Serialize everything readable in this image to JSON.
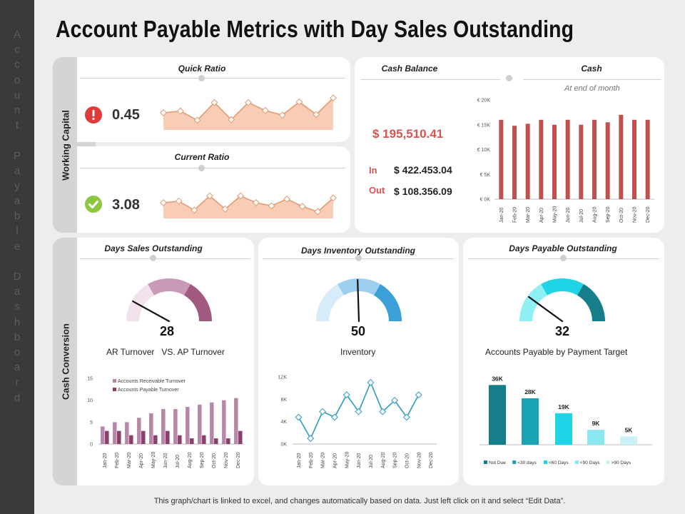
{
  "title": "Account Payable Metrics with Day Sales Outstanding",
  "sidebar_text": "Account Payable Dashboard",
  "sections": {
    "working_capital": "Working Capital",
    "cash_conversion": "Cash Conversion"
  },
  "quick_ratio": {
    "title": "Quick Ratio",
    "value": "0.45",
    "status": "alert",
    "status_color": "#e03b3b",
    "series": [
      3,
      3.3,
      1.7,
      4.8,
      1.8,
      4.8,
      3.4,
      2.6,
      4.9,
      2.7,
      5.6
    ]
  },
  "current_ratio": {
    "title": "Current Ratio",
    "value": "3.08",
    "status": "ok",
    "status_color": "#8dc63f",
    "series": [
      3,
      3.3,
      1.6,
      4.3,
      1.8,
      4.3,
      3.0,
      2.4,
      3.7,
      2.3,
      1.3,
      3.9
    ]
  },
  "cash_balance": {
    "title": "Cash Balance",
    "amount": "$ 195,510.41",
    "in_label": "In",
    "in_value": "$ 422.453.04",
    "out_label": "Out",
    "out_value": "$ 108.356.09"
  },
  "cash_chart": {
    "title": "Cash",
    "subtitle": "At end of month",
    "chart_data": {
      "type": "bar",
      "categories": [
        "Jan-20",
        "Feb-20",
        "Mar-20",
        "Apr-20",
        "May-20",
        "Jun-20",
        "Jul-20",
        "Aug-20",
        "Sep-20",
        "Oct-20",
        "Nov-20",
        "Dec-20"
      ],
      "values": [
        16000,
        14800,
        15200,
        16000,
        15000,
        16000,
        15000,
        16000,
        15500,
        17000,
        16000,
        16000
      ],
      "ylim": [
        0,
        20000
      ],
      "yticks": [
        "€ 0K",
        "€ 5K",
        "€ 10K",
        "€ 15K",
        "€ 20K"
      ],
      "color": "#c0504d"
    }
  },
  "dso": {
    "title": "Days Sales Outstanding",
    "value": "28",
    "caption": "AR Turnover   VS. AP Turnover",
    "gauge_colors": [
      "#f1e2ec",
      "#c99ab8",
      "#a2597f"
    ],
    "needle_fraction": 0.16,
    "chart_data": {
      "type": "bar",
      "categories": [
        "Jan-20",
        "Feb-20",
        "Mar-20",
        "Apr-20",
        "May-20",
        "Jun-20",
        "Jul-20",
        "Aug-20",
        "Sep-20",
        "Oct-20",
        "Nov-20",
        "Dec-20"
      ],
      "series": [
        {
          "name": "Accounts Receivable Turnover",
          "values": [
            4,
            5,
            5,
            6,
            7,
            8,
            8,
            8.5,
            9,
            9.5,
            10,
            10.5
          ],
          "color": "#b886a8"
        },
        {
          "name": "Accounts Payable Turnover",
          "values": [
            3,
            3,
            2,
            3,
            2,
            3,
            2,
            1.3,
            2,
            1.3,
            1.3,
            3
          ],
          "color": "#8a3f6c"
        }
      ],
      "ylim": [
        0,
        15
      ],
      "yticks": [
        "0",
        "5",
        "10",
        "15"
      ]
    }
  },
  "dio": {
    "title": "Days Inventory Outstanding",
    "value": "50",
    "caption": "Inventory",
    "gauge_colors": [
      "#d6ecf8",
      "#9dd0ee",
      "#3b9fd8"
    ],
    "needle_fraction": 0.49,
    "chart_data": {
      "type": "line",
      "categories": [
        "Jan-20",
        "Feb-20",
        "Mar-20",
        "Apr-20",
        "May-20",
        "Jun-20",
        "Jul-20",
        "Aug-20",
        "Sep-20",
        "Oct-20",
        "Nov-20",
        "Dec-20"
      ],
      "values": [
        4800,
        1000,
        5800,
        4800,
        8800,
        5800,
        11000,
        5800,
        7800,
        4800,
        8800,
        null
      ],
      "ylim": [
        0,
        12000
      ],
      "yticks": [
        "0K",
        "4K",
        "8K",
        "12K"
      ],
      "color": "#2f9bc2"
    }
  },
  "dpo": {
    "title": "Days Payable Outstanding",
    "value": "32",
    "caption": "Accounts Payable by Payment Target",
    "gauge_colors": [
      "#8ff0f4",
      "#1fd4e6",
      "#157e8a"
    ],
    "needle_fraction": 0.2,
    "chart_data": {
      "type": "bar",
      "categories": [
        "Not Due",
        "<30 days",
        "<60 Days",
        "<90 Days",
        ">90 Days"
      ],
      "values": [
        36,
        28,
        19,
        9,
        5
      ],
      "labels": [
        "36K",
        "28K",
        "19K",
        "9K",
        "5K"
      ],
      "colors": [
        "#157e8a",
        "#1aa3b3",
        "#1fd4e6",
        "#8ae8f2",
        "#c8f2f6"
      ],
      "ylim": [
        0,
        40
      ]
    }
  },
  "footer": "This graph/chart is linked to excel, and changes automatically based on data. Just left click on it and select “Edit Data”."
}
